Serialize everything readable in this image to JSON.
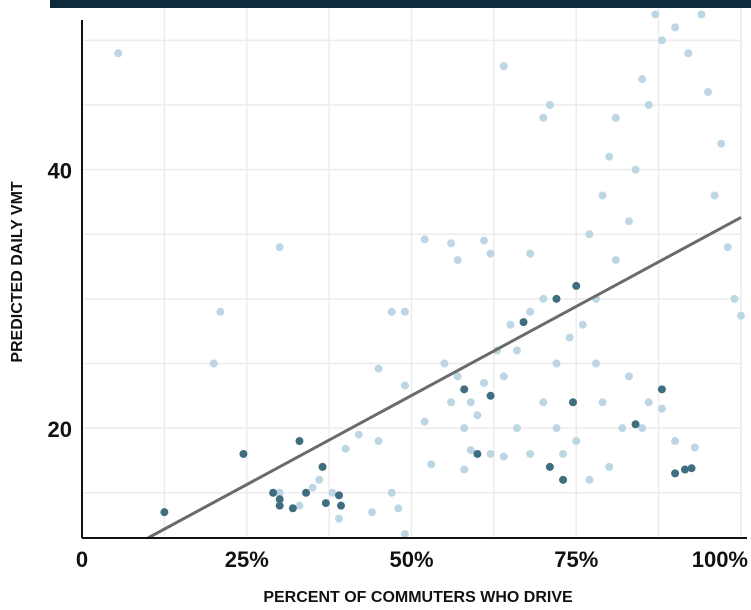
{
  "chart_data": {
    "type": "scatter",
    "title": "",
    "xlabel": "PERCENT OF COMMUTERS WHO DRIVE",
    "ylabel": "PREDICTED DAILY VMT",
    "xlim": [
      0,
      100
    ],
    "ylim": [
      11.5,
      52.5
    ],
    "x_ticks": [
      {
        "value": 0,
        "label": "0"
      },
      {
        "value": 25,
        "label": "25%"
      },
      {
        "value": 50,
        "label": "50%"
      },
      {
        "value": 75,
        "label": "75%"
      },
      {
        "value": 100,
        "label": "100%"
      }
    ],
    "y_ticks": [
      {
        "value": 20,
        "label": "20"
      },
      {
        "value": 40,
        "label": "40"
      }
    ],
    "grid": true,
    "colors": {
      "light_points": "#bcd7e3",
      "dark_points": "#3f6e80",
      "trend_line": "#6b6b6b",
      "grid": "#ececec",
      "top_bar": "#0e2a3b"
    },
    "trend_line": {
      "x": [
        10,
        100
      ],
      "y": [
        11.5,
        36.3
      ]
    },
    "series": [
      {
        "style": "light",
        "points": [
          [
            5.5,
            49
          ],
          [
            64,
            48
          ],
          [
            30,
            34
          ],
          [
            21,
            29
          ],
          [
            20,
            25
          ],
          [
            49,
            29
          ],
          [
            47,
            29
          ],
          [
            52,
            34.6
          ],
          [
            56,
            34.3
          ],
          [
            61,
            34.5
          ],
          [
            57,
            33
          ],
          [
            62,
            33.5
          ],
          [
            68,
            33.5
          ],
          [
            71,
            45
          ],
          [
            70,
            44
          ],
          [
            86,
            45
          ],
          [
            81,
            44
          ],
          [
            42,
            19.5
          ],
          [
            40,
            18.4
          ],
          [
            36,
            16
          ],
          [
            38,
            15
          ],
          [
            44,
            13.5
          ],
          [
            47,
            15
          ],
          [
            48,
            13.8
          ],
          [
            49,
            11.8
          ],
          [
            39,
            13
          ],
          [
            35,
            15.4
          ],
          [
            30,
            15
          ],
          [
            33,
            14
          ],
          [
            45,
            19
          ],
          [
            45,
            24.6
          ],
          [
            49,
            23.3
          ],
          [
            52,
            20.5
          ],
          [
            53,
            17.2
          ],
          [
            58,
            16.8
          ],
          [
            59,
            18.3
          ],
          [
            62,
            18
          ],
          [
            64,
            17.8
          ],
          [
            56,
            22
          ],
          [
            58,
            20
          ],
          [
            60,
            21
          ],
          [
            55,
            25
          ],
          [
            57,
            24
          ],
          [
            59,
            22
          ],
          [
            61,
            23.5
          ],
          [
            63,
            26
          ],
          [
            65,
            28
          ],
          [
            66,
            26
          ],
          [
            68,
            29
          ],
          [
            70,
            30
          ],
          [
            64,
            24
          ],
          [
            66,
            20
          ],
          [
            68,
            18
          ],
          [
            72,
            20
          ],
          [
            73,
            18
          ],
          [
            75,
            19
          ],
          [
            77,
            16
          ],
          [
            70,
            22
          ],
          [
            72,
            25
          ],
          [
            74,
            27
          ],
          [
            76,
            28
          ],
          [
            78,
            30
          ],
          [
            77,
            35
          ],
          [
            79,
            38
          ],
          [
            80,
            41
          ],
          [
            81,
            33
          ],
          [
            83,
            36
          ],
          [
            84,
            40
          ],
          [
            85,
            47
          ],
          [
            87,
            52
          ],
          [
            88,
            50
          ],
          [
            90,
            51
          ],
          [
            92,
            49
          ],
          [
            94,
            52
          ],
          [
            95,
            46
          ],
          [
            97,
            42
          ],
          [
            96,
            38
          ],
          [
            98,
            34
          ],
          [
            99,
            30
          ],
          [
            100,
            28.7
          ],
          [
            86,
            22
          ],
          [
            85,
            20
          ],
          [
            88,
            21.5
          ],
          [
            90,
            19
          ],
          [
            93,
            18.5
          ],
          [
            80,
            17
          ],
          [
            82,
            20
          ],
          [
            83,
            24
          ],
          [
            78,
            25
          ],
          [
            79,
            22
          ]
        ]
      },
      {
        "style": "dark",
        "points": [
          [
            12.5,
            13.5
          ],
          [
            24.5,
            18
          ],
          [
            29,
            15
          ],
          [
            30,
            14.5
          ],
          [
            30,
            14
          ],
          [
            32,
            13.8
          ],
          [
            33,
            19
          ],
          [
            34,
            15
          ],
          [
            36.5,
            17
          ],
          [
            37,
            14.2
          ],
          [
            39,
            14.8
          ],
          [
            39.3,
            14
          ],
          [
            58,
            23
          ],
          [
            60,
            18
          ],
          [
            62,
            22.5
          ],
          [
            67,
            28.2
          ],
          [
            71,
            17
          ],
          [
            72,
            30
          ],
          [
            73,
            16
          ],
          [
            74.5,
            22
          ],
          [
            75,
            31
          ],
          [
            84,
            20.3
          ],
          [
            88,
            23
          ],
          [
            90,
            16.5
          ],
          [
            91.5,
            16.8
          ],
          [
            92.5,
            16.9
          ]
        ]
      }
    ]
  }
}
